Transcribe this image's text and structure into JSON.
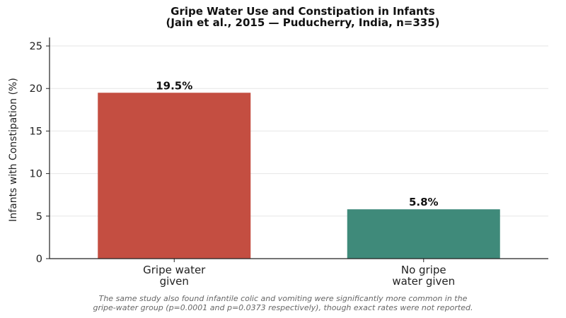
{
  "chart_data": {
    "type": "bar",
    "title": [
      "Gripe Water Use and Constipation in Infants",
      "(Jain et al., 2015 — Puducherry, India, n=335)"
    ],
    "xlabel": "",
    "ylabel": "Infants with Constipation (%)",
    "categories": [
      [
        "Gripe water",
        "given"
      ],
      [
        "No gripe",
        "water given"
      ]
    ],
    "values": [
      19.5,
      5.8
    ],
    "value_labels": [
      "19.5%",
      "5.8%"
    ],
    "colors": [
      "#c44e41",
      "#3f8a7a"
    ],
    "ylim": [
      0,
      26
    ],
    "yticks": [
      0,
      5,
      10,
      15,
      20,
      25
    ],
    "grid": true,
    "legend": "none"
  },
  "footnote": [
    "The same study also found infantile colic and vomiting were significantly more common in the",
    "gripe-water group (p=0.0001 and p=0.0373 respectively), though exact rates were not reported."
  ]
}
